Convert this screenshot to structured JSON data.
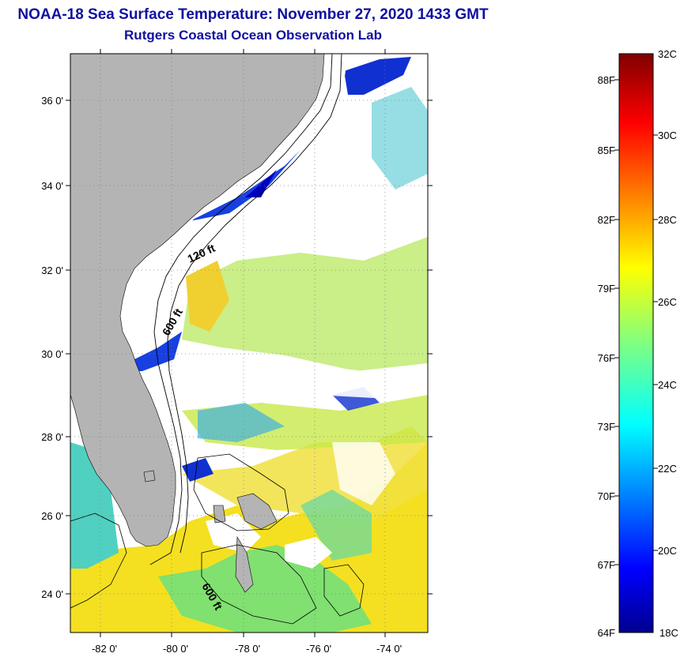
{
  "header": {
    "title": "NOAA-18 Sea Surface Temperature:  November 27, 2020 1433 GMT",
    "subtitle": "Rutgers Coastal Ocean Observation Lab"
  },
  "map": {
    "lat_labels": [
      "36 0'",
      "34 0'",
      "32 0'",
      "30 0'",
      "28 0'",
      "26 0'",
      "24 0'"
    ],
    "lon_labels": [
      "-82 0'",
      "-80 0'",
      "-78 0'",
      "-76 0'",
      "-74 0'"
    ],
    "contour_labels": [
      "120 ft",
      "600 ft",
      "600 ft"
    ],
    "colors": {
      "land": "#b4b4b4",
      "cloud": "#ffffff",
      "grid": "#808080"
    }
  },
  "colorbar": {
    "celsius_labels": [
      "32C",
      "30C",
      "28C",
      "26C",
      "24C",
      "22C",
      "20C",
      "18C"
    ],
    "fahrenheit_labels": [
      "88F",
      "85F",
      "82F",
      "79F",
      "76F",
      "73F",
      "70F",
      "67F",
      "64F"
    ],
    "colormap": "jet"
  }
}
